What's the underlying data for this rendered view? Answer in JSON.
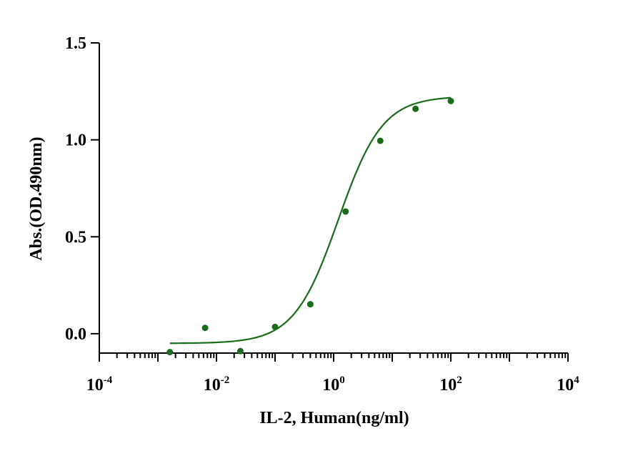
{
  "chart_data": {
    "type": "scatter",
    "xlabel": "IL-2, Human(ng/ml)",
    "ylabel": "Abs.(OD.490nm)",
    "xscale": "log",
    "xlim": [
      0.0001,
      10000
    ],
    "ylim": [
      -0.1,
      1.5
    ],
    "x_ticks": [
      {
        "base": "10",
        "exp": "-4"
      },
      {
        "base": "10",
        "exp": "-2"
      },
      {
        "base": "10",
        "exp": "0"
      },
      {
        "base": "10",
        "exp": "2"
      },
      {
        "base": "10",
        "exp": "4"
      }
    ],
    "y_ticks": [
      "0.0",
      "0.5",
      "1.0",
      "1.5"
    ],
    "y_tick_values": [
      0.0,
      0.5,
      1.0,
      1.5
    ],
    "series": [
      {
        "color": "#1a6b1a",
        "points": [
          {
            "x": 0.0016,
            "y": -0.095
          },
          {
            "x": 0.0064,
            "y": 0.03
          },
          {
            "x": 0.0256,
            "y": -0.09
          },
          {
            "x": 0.1,
            "y": 0.035
          },
          {
            "x": 0.4,
            "y": 0.152
          },
          {
            "x": 1.6,
            "y": 0.63
          },
          {
            "x": 6.25,
            "y": 0.995
          },
          {
            "x": 25,
            "y": 1.16
          },
          {
            "x": 100,
            "y": 1.2
          }
        ],
        "fit": {
          "model": "4PL",
          "bottom": -0.05,
          "top": 1.225,
          "ec50": 1.2,
          "hill": 1.15,
          "x_range": [
            0.0016,
            100
          ]
        }
      }
    ]
  }
}
